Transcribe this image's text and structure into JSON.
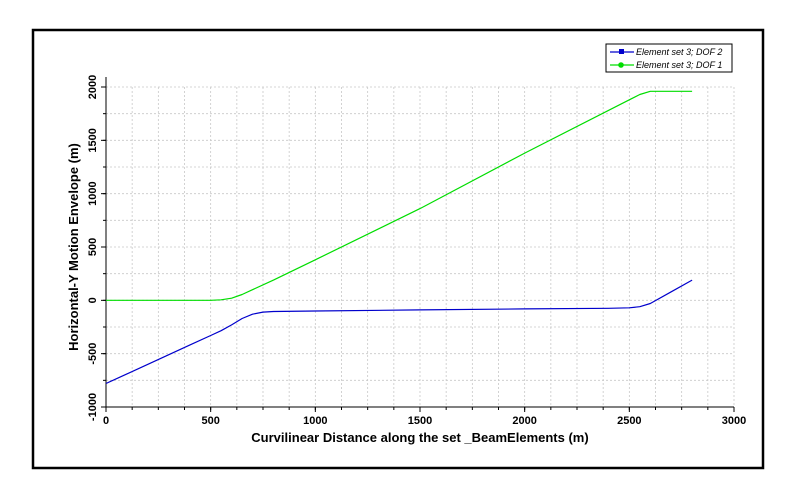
{
  "chart_data": {
    "type": "line",
    "xlabel": "Curvilinear Distance along the set _BeamElements (m)",
    "ylabel": "Horizontal-Y Motion Envelope (m)",
    "xlim": [
      0,
      3000
    ],
    "ylim": [
      -1000,
      2000
    ],
    "xticks": [
      "0",
      "500",
      "1000",
      "1500",
      "2000",
      "2500",
      "3000"
    ],
    "yticks": [
      "-1000",
      "-500",
      "0",
      "500",
      "1000",
      "1500",
      "2000"
    ],
    "grid": true,
    "legend_position": "top-right",
    "series": [
      {
        "name": "Element set  3; DOF  2",
        "color": "#0000cc",
        "marker": "square",
        "x": [
          0,
          100,
          200,
          300,
          400,
          500,
          550,
          600,
          650,
          700,
          750,
          800,
          1000,
          1500,
          2000,
          2400,
          2500,
          2550,
          2600,
          2700,
          2800
        ],
        "y": [
          -780,
          -690,
          -600,
          -510,
          -420,
          -330,
          -285,
          -230,
          -170,
          -130,
          -110,
          -105,
          -100,
          -90,
          -80,
          -75,
          -70,
          -60,
          -30,
          80,
          190
        ]
      },
      {
        "name": "Element set  3; DOF  1",
        "color": "#00dd00",
        "marker": "circle",
        "x": [
          0,
          500,
          550,
          600,
          650,
          700,
          800,
          1000,
          1500,
          2000,
          2500,
          2550,
          2600,
          2650,
          2700,
          2800
        ],
        "y": [
          0,
          0,
          5,
          20,
          55,
          100,
          190,
          380,
          860,
          1380,
          1880,
          1930,
          1960,
          1960,
          1960,
          1960
        ]
      }
    ]
  }
}
